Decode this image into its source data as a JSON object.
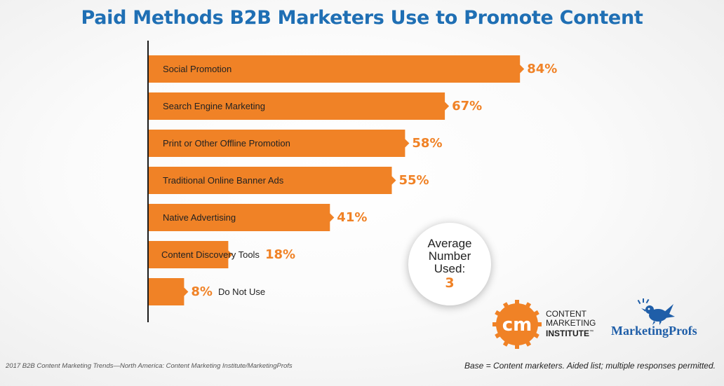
{
  "chart_data": {
    "type": "bar",
    "orientation": "horizontal",
    "title": "Paid Methods B2B Marketers Use to Promote Content",
    "categories": [
      "Social Promotion",
      "Search Engine Marketing",
      "Print or Other Offline Promotion",
      "Traditional Online Banner Ads",
      "Native Advertising",
      "Content Discovery Tools",
      "Do Not Use"
    ],
    "values": [
      84,
      67,
      58,
      55,
      41,
      18,
      8
    ],
    "value_labels": [
      "84%",
      "67%",
      "58%",
      "55%",
      "41%",
      "18%",
      "8%"
    ],
    "xlim": [
      0,
      100
    ],
    "grid": false,
    "bar_color": "#f08226",
    "value_color": "#f08226"
  },
  "average": {
    "label": "Average Number Used:",
    "value": "3"
  },
  "logos": {
    "cmi": {
      "mark": "cm",
      "line1": "CONTENT",
      "line2": "MARKETING",
      "line3": "INSTITUTE",
      "trademark": "™"
    },
    "marketingprofs": {
      "icon": "bird-icon",
      "name": "MarketingProfs"
    }
  },
  "footer": {
    "source": "2017 B2B Content Marketing Trends—North America: Content Marketing Institute/MarketingProfs",
    "base": "Base = Content marketers. Aided list; multiple responses permitted."
  },
  "colors": {
    "title": "#1f6fb4",
    "accent": "#f08226",
    "axis": "#1a1a1a"
  }
}
